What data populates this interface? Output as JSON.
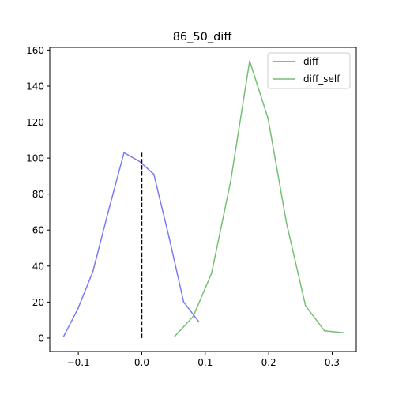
{
  "chart_data": {
    "type": "line",
    "title": "86_50_diff",
    "xlabel": "",
    "ylabel": "",
    "xlim": [
      -0.145,
      0.338
    ],
    "ylim": [
      -7.5,
      161.5
    ],
    "xticks": [
      -0.1,
      0.0,
      0.1,
      0.2,
      0.3
    ],
    "xtick_labels": [
      "−0.1",
      "0.0",
      "0.1",
      "0.2",
      "0.3"
    ],
    "yticks": [
      0,
      20,
      40,
      60,
      80,
      100,
      120,
      140,
      160
    ],
    "ytick_labels": [
      "0",
      "20",
      "40",
      "60",
      "80",
      "100",
      "120",
      "140",
      "160"
    ],
    "grid": false,
    "legend": {
      "position": "top-right",
      "entries": [
        "diff",
        "diff_self"
      ]
    },
    "series": [
      {
        "name": "diff",
        "color": "#7b7bf5",
        "points": [
          [
            -0.123,
            1
          ],
          [
            -0.101,
            16
          ],
          [
            -0.077,
            37
          ],
          [
            -0.053,
            70
          ],
          [
            -0.028,
            103
          ],
          [
            -0.003,
            98
          ],
          [
            0.019,
            91
          ],
          [
            0.043,
            56
          ],
          [
            0.066,
            20
          ],
          [
            0.09,
            9
          ]
        ]
      },
      {
        "name": "diff_self",
        "color": "#76bf76",
        "points": [
          [
            0.052,
            1
          ],
          [
            0.081,
            12
          ],
          [
            0.11,
            36
          ],
          [
            0.14,
            87
          ],
          [
            0.17,
            154
          ],
          [
            0.199,
            122
          ],
          [
            0.228,
            64
          ],
          [
            0.258,
            18
          ],
          [
            0.288,
            4
          ],
          [
            0.317,
            3
          ]
        ]
      }
    ],
    "vline": {
      "x": 0.0,
      "ymin": 0,
      "ymax": 103,
      "style": "dashed",
      "color": "#000000"
    }
  }
}
